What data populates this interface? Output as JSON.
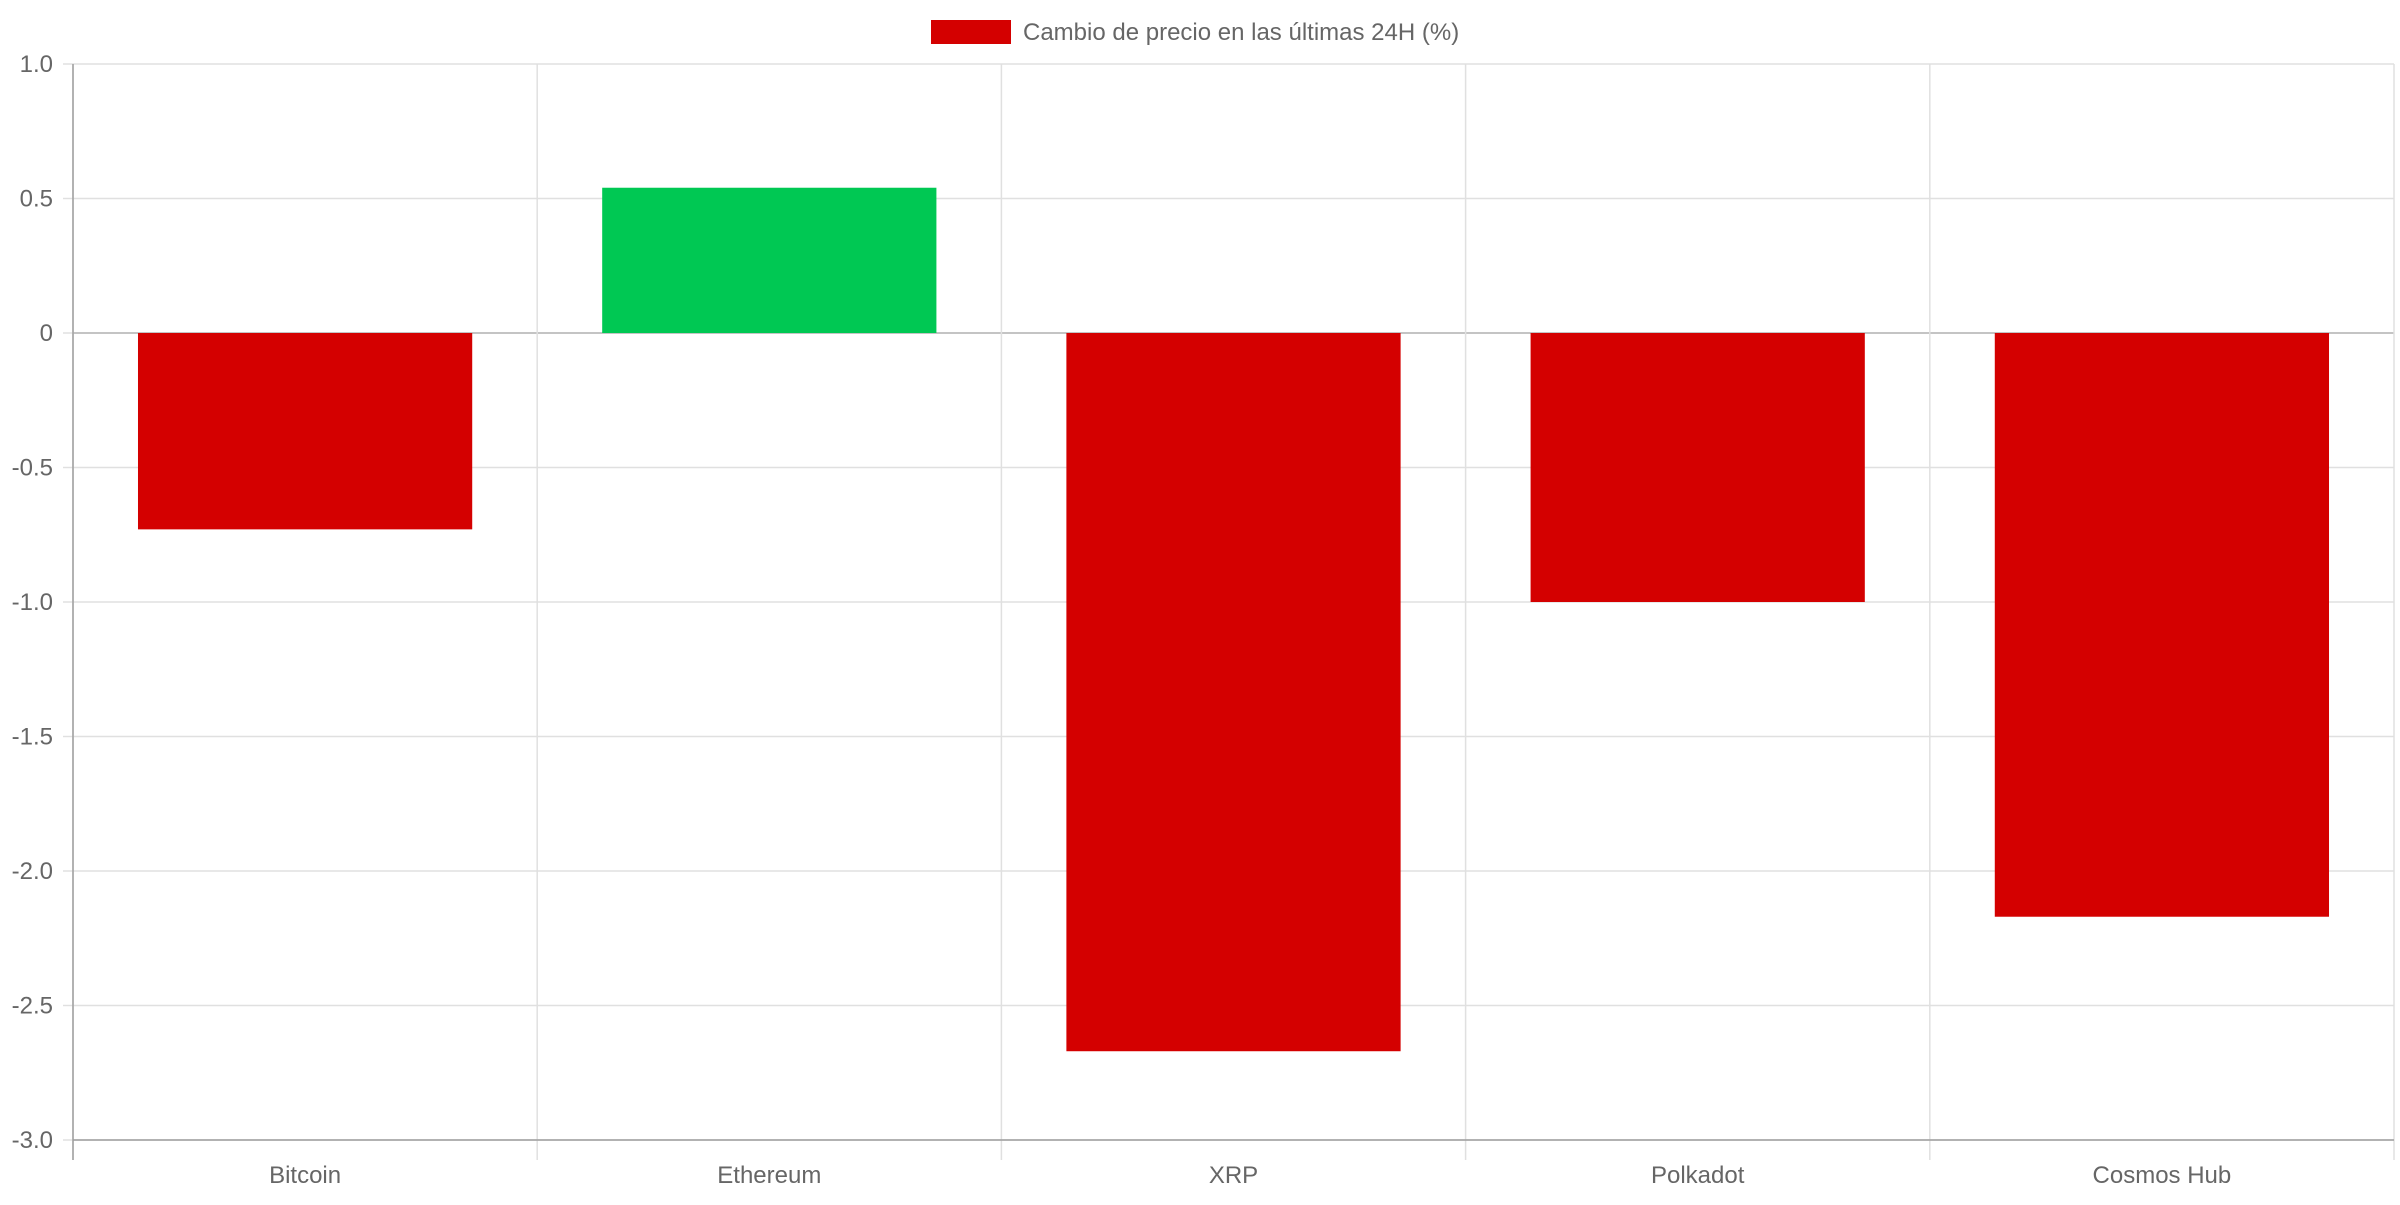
{
  "chart_data": {
    "type": "bar",
    "categories": [
      "Bitcoin",
      "Ethereum",
      "XRP",
      "Polkadot",
      "Cosmos Hub"
    ],
    "series": [
      {
        "name": "Cambio de precio en las últimas 24H (%)",
        "values": [
          -0.73,
          0.54,
          -2.67,
          -1.0,
          -2.17
        ]
      }
    ],
    "ylim": [
      -3.0,
      1.0
    ],
    "yticks": [
      1.0,
      0.5,
      0,
      -0.5,
      -1.0,
      -1.5,
      -2.0,
      -2.5,
      -3.0
    ],
    "ytick_labels": [
      "1.0",
      "0.5",
      "0",
      "-0.5",
      "-1.0",
      "-1.5",
      "-2.0",
      "-2.5",
      "-3.0"
    ],
    "grid": true,
    "legend_position": "top-center",
    "legend_color": "#d40000",
    "colors": {
      "negative": "#d40000",
      "positive": "#00c853",
      "grid": "#e0e0e0",
      "axis": "#9e9e9e",
      "text": "#666666"
    }
  }
}
